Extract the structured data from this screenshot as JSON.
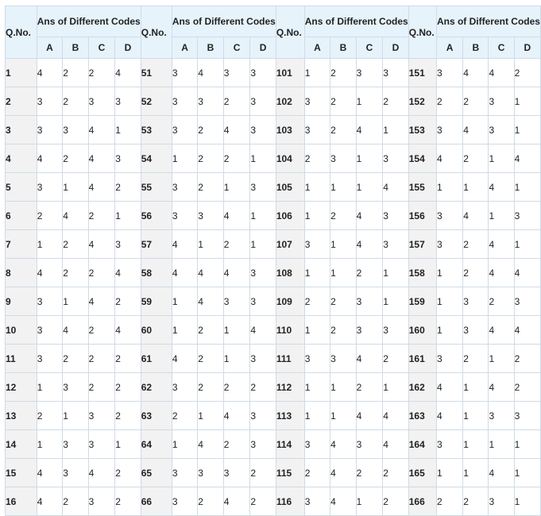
{
  "table": {
    "qno_label": "Q.No.",
    "group_label": "Ans of Different Codes",
    "codes": [
      "A",
      "B",
      "C",
      "D"
    ],
    "rows": [
      [
        [
          "1",
          "4",
          "2",
          "2",
          "4"
        ],
        [
          "51",
          "3",
          "4",
          "3",
          "3"
        ],
        [
          "101",
          "1",
          "2",
          "3",
          "3"
        ],
        [
          "151",
          "3",
          "4",
          "4",
          "2"
        ]
      ],
      [
        [
          "2",
          "3",
          "2",
          "3",
          "3"
        ],
        [
          "52",
          "3",
          "3",
          "2",
          "3"
        ],
        [
          "102",
          "3",
          "2",
          "1",
          "2"
        ],
        [
          "152",
          "2",
          "2",
          "3",
          "1"
        ]
      ],
      [
        [
          "3",
          "3",
          "3",
          "4",
          "1"
        ],
        [
          "53",
          "3",
          "2",
          "4",
          "3"
        ],
        [
          "103",
          "3",
          "2",
          "4",
          "1"
        ],
        [
          "153",
          "3",
          "4",
          "3",
          "1"
        ]
      ],
      [
        [
          "4",
          "4",
          "2",
          "4",
          "3"
        ],
        [
          "54",
          "1",
          "2",
          "2",
          "1"
        ],
        [
          "104",
          "2",
          "3",
          "1",
          "3"
        ],
        [
          "154",
          "4",
          "2",
          "1",
          "4"
        ]
      ],
      [
        [
          "5",
          "3",
          "1",
          "4",
          "2"
        ],
        [
          "55",
          "3",
          "2",
          "1",
          "3"
        ],
        [
          "105",
          "1",
          "1",
          "1",
          "4"
        ],
        [
          "155",
          "1",
          "1",
          "4",
          "1"
        ]
      ],
      [
        [
          "6",
          "2",
          "4",
          "2",
          "1"
        ],
        [
          "56",
          "3",
          "3",
          "4",
          "1"
        ],
        [
          "106",
          "1",
          "2",
          "4",
          "3"
        ],
        [
          "156",
          "3",
          "4",
          "1",
          "3"
        ]
      ],
      [
        [
          "7",
          "1",
          "2",
          "4",
          "3"
        ],
        [
          "57",
          "4",
          "1",
          "2",
          "1"
        ],
        [
          "107",
          "3",
          "1",
          "4",
          "3"
        ],
        [
          "157",
          "3",
          "2",
          "4",
          "1"
        ]
      ],
      [
        [
          "8",
          "4",
          "2",
          "2",
          "4"
        ],
        [
          "58",
          "4",
          "4",
          "4",
          "3"
        ],
        [
          "108",
          "1",
          "1",
          "2",
          "1"
        ],
        [
          "158",
          "1",
          "2",
          "4",
          "4"
        ]
      ],
      [
        [
          "9",
          "3",
          "1",
          "4",
          "2"
        ],
        [
          "59",
          "1",
          "4",
          "3",
          "3"
        ],
        [
          "109",
          "2",
          "2",
          "3",
          "1"
        ],
        [
          "159",
          "1",
          "3",
          "2",
          "3"
        ]
      ],
      [
        [
          "10",
          "3",
          "4",
          "2",
          "4"
        ],
        [
          "60",
          "1",
          "2",
          "1",
          "4"
        ],
        [
          "110",
          "1",
          "2",
          "3",
          "3"
        ],
        [
          "160",
          "1",
          "3",
          "4",
          "4"
        ]
      ],
      [
        [
          "11",
          "3",
          "2",
          "2",
          "2"
        ],
        [
          "61",
          "4",
          "2",
          "1",
          "3"
        ],
        [
          "111",
          "3",
          "3",
          "4",
          "2"
        ],
        [
          "161",
          "3",
          "2",
          "1",
          "2"
        ]
      ],
      [
        [
          "12",
          "1",
          "3",
          "2",
          "2"
        ],
        [
          "62",
          "3",
          "2",
          "2",
          "2"
        ],
        [
          "112",
          "1",
          "1",
          "2",
          "1"
        ],
        [
          "162",
          "4",
          "1",
          "4",
          "2"
        ]
      ],
      [
        [
          "13",
          "2",
          "1",
          "3",
          "2"
        ],
        [
          "63",
          "2",
          "1",
          "4",
          "3"
        ],
        [
          "113",
          "1",
          "1",
          "4",
          "4"
        ],
        [
          "163",
          "4",
          "1",
          "3",
          "3"
        ]
      ],
      [
        [
          "14",
          "1",
          "3",
          "3",
          "1"
        ],
        [
          "64",
          "1",
          "4",
          "2",
          "3"
        ],
        [
          "114",
          "3",
          "4",
          "3",
          "4"
        ],
        [
          "164",
          "3",
          "1",
          "1",
          "1"
        ]
      ],
      [
        [
          "15",
          "4",
          "3",
          "4",
          "2"
        ],
        [
          "65",
          "3",
          "3",
          "3",
          "2"
        ],
        [
          "115",
          "2",
          "4",
          "2",
          "2"
        ],
        [
          "165",
          "1",
          "1",
          "4",
          "1"
        ]
      ],
      [
        [
          "16",
          "4",
          "2",
          "3",
          "2"
        ],
        [
          "66",
          "3",
          "2",
          "4",
          "2"
        ],
        [
          "116",
          "3",
          "4",
          "1",
          "2"
        ],
        [
          "166",
          "2",
          "2",
          "3",
          "1"
        ]
      ]
    ]
  }
}
